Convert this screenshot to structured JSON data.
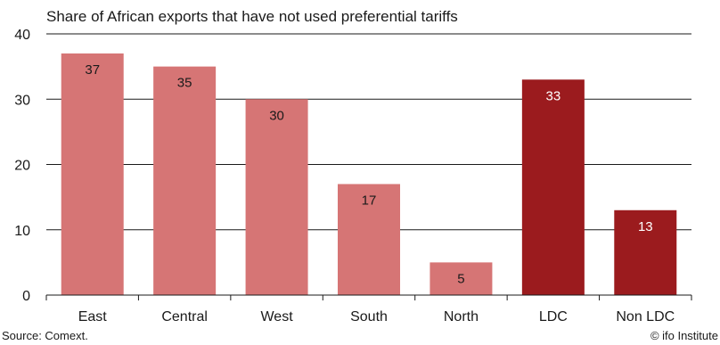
{
  "chart_data": {
    "type": "bar",
    "title": "Share of African exports that have not used preferential tariffs",
    "categories": [
      "East",
      "Central",
      "West",
      "South",
      "North",
      "LDC",
      "Non LDC"
    ],
    "values": [
      37,
      35,
      30,
      17,
      5,
      33,
      13
    ],
    "data_labels": [
      "37",
      "35",
      "30",
      "17",
      "5",
      "33",
      "13"
    ],
    "bar_colors": [
      "#d67575",
      "#d67575",
      "#d67575",
      "#d67575",
      "#d67575",
      "#9b1b1e",
      "#9b1b1e"
    ],
    "label_colors": [
      "#1a1a1a",
      "#1a1a1a",
      "#1a1a1a",
      "#1a1a1a",
      "#1a1a1a",
      "#ffffff",
      "#ffffff"
    ],
    "ylim": [
      0,
      40
    ],
    "yticks": [
      0,
      10,
      20,
      30,
      40
    ],
    "ytick_labels": [
      "0",
      "10",
      "20",
      "30",
      "40"
    ],
    "xlabel": "",
    "ylabel": "",
    "grid": true
  },
  "footer": {
    "source": "Source: Comext.",
    "credit": "© ifo Institute"
  }
}
